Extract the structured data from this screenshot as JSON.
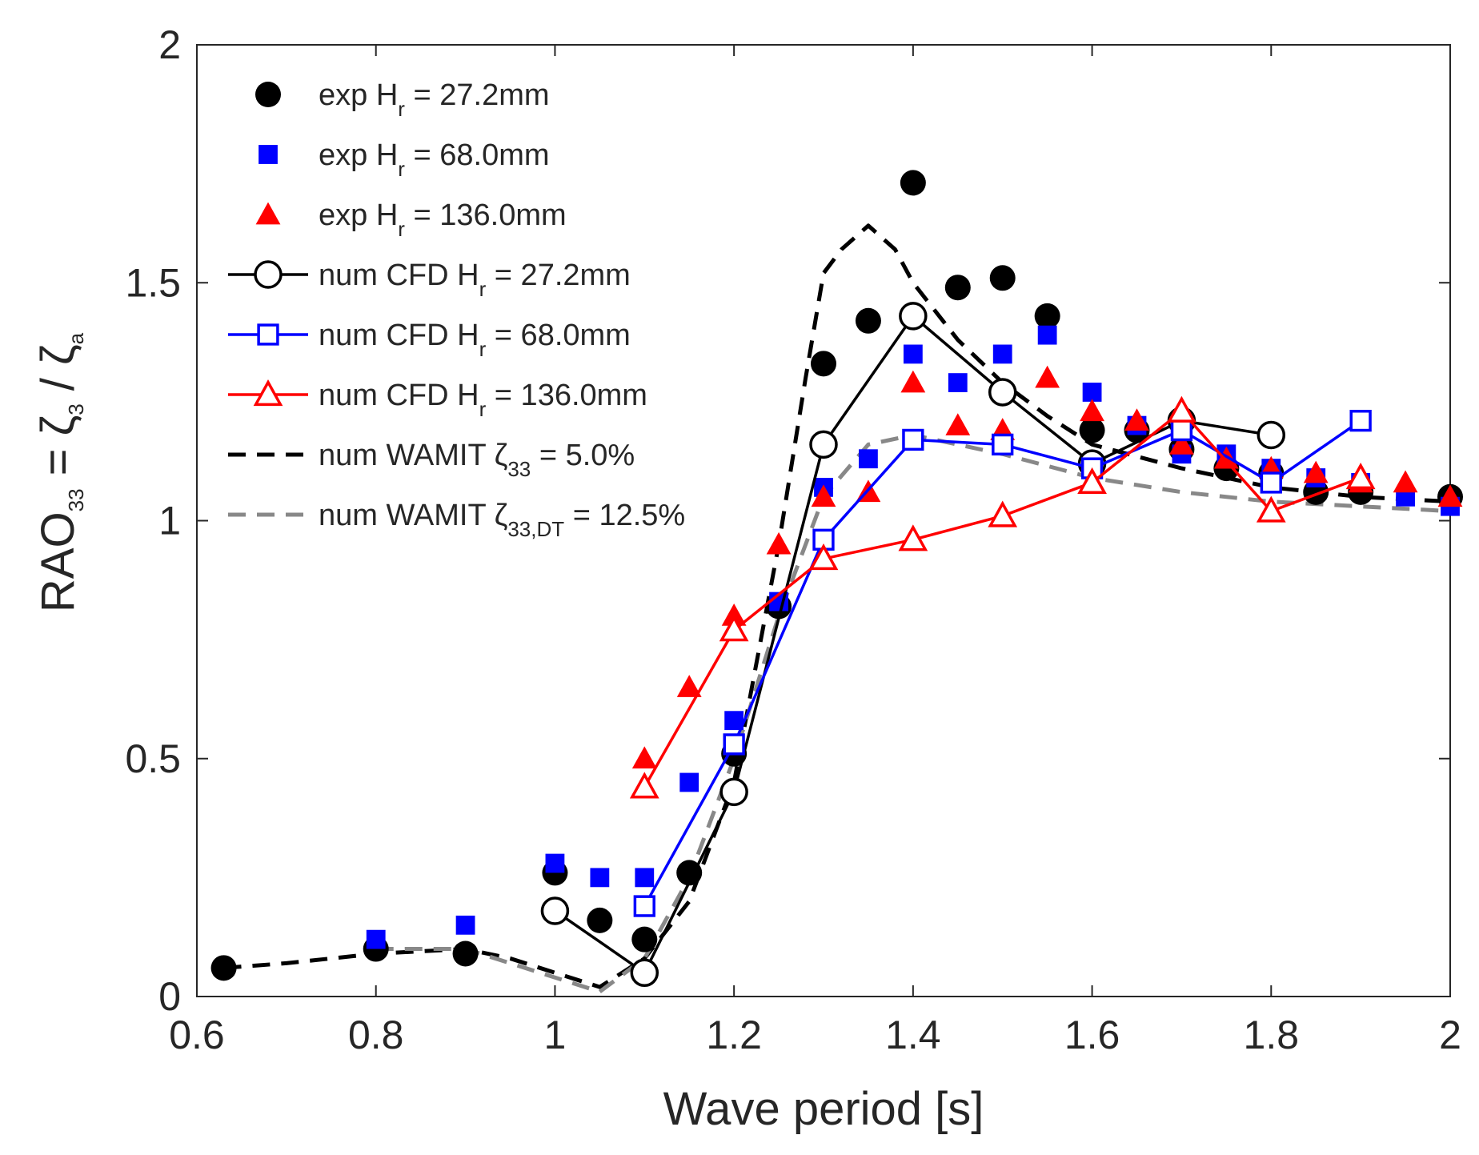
{
  "chart_data": {
    "type": "scatter",
    "xlabel": "Wave period [s]",
    "ylabel": {
      "main": "RAO",
      "sub1": "33",
      "eq": " = ζ",
      "sub2": "3",
      "slash": " / ζ",
      "sub3": "a"
    },
    "xlim": [
      0.6,
      2.0
    ],
    "ylim": [
      0,
      2.0
    ],
    "xticks": [
      0.6,
      0.8,
      1.0,
      1.2,
      1.4,
      1.6,
      1.8,
      2.0
    ],
    "xtick_labels": [
      "0.6",
      "0.8",
      "1",
      "1.2",
      "1.4",
      "1.6",
      "1.8",
      "2"
    ],
    "yticks": [
      0,
      0.5,
      1.0,
      1.5,
      2.0
    ],
    "ytick_labels": [
      "0",
      "0.5",
      "1",
      "1.5",
      "2"
    ],
    "legend_position": "top-left",
    "series": [
      {
        "name": "exp Hr = 27.2mm",
        "label": {
          "pre": "exp H",
          "sub": "r",
          "post": " = 27.2mm"
        },
        "kind": "marker",
        "marker": "circle-filled",
        "color": "#000000",
        "x": [
          0.63,
          0.8,
          0.9,
          1.0,
          1.05,
          1.1,
          1.15,
          1.2,
          1.25,
          1.3,
          1.35,
          1.4,
          1.45,
          1.5,
          1.55,
          1.6,
          1.65,
          1.7,
          1.75,
          1.8,
          1.85,
          1.9,
          2.0
        ],
        "y": [
          0.06,
          0.1,
          0.09,
          0.26,
          0.16,
          0.12,
          0.26,
          0.51,
          0.82,
          1.33,
          1.42,
          1.71,
          1.49,
          1.51,
          1.43,
          1.19,
          1.19,
          1.15,
          1.11,
          1.1,
          1.06,
          1.06,
          1.05
        ]
      },
      {
        "name": "exp Hr = 68.0mm",
        "label": {
          "pre": "exp H",
          "sub": "r",
          "post": " = 68.0mm"
        },
        "kind": "marker",
        "marker": "square-filled",
        "color": "#0000ff",
        "x": [
          0.8,
          0.9,
          1.0,
          1.05,
          1.1,
          1.15,
          1.2,
          1.25,
          1.3,
          1.35,
          1.4,
          1.45,
          1.5,
          1.55,
          1.6,
          1.65,
          1.7,
          1.75,
          1.8,
          1.85,
          1.9,
          1.95,
          2.0
        ],
        "y": [
          0.12,
          0.15,
          0.28,
          0.25,
          0.25,
          0.45,
          0.58,
          0.83,
          1.07,
          1.13,
          1.35,
          1.29,
          1.35,
          1.39,
          1.27,
          1.2,
          1.14,
          1.14,
          1.11,
          1.09,
          1.08,
          1.05,
          1.03
        ]
      },
      {
        "name": "exp Hr = 136.0mm",
        "label": {
          "pre": "exp H",
          "sub": "r",
          "post": " = 136.0mm"
        },
        "kind": "marker",
        "marker": "triangle-filled",
        "color": "#ff0000",
        "x": [
          1.1,
          1.15,
          1.2,
          1.25,
          1.3,
          1.35,
          1.4,
          1.45,
          1.5,
          1.55,
          1.6,
          1.65,
          1.7,
          1.75,
          1.8,
          1.85,
          1.9,
          1.95,
          2.0
        ],
        "y": [
          0.5,
          0.65,
          0.8,
          0.95,
          1.05,
          1.06,
          1.29,
          1.2,
          1.19,
          1.3,
          1.23,
          1.21,
          1.16,
          1.13,
          1.11,
          1.1,
          1.08,
          1.08,
          1.05
        ]
      },
      {
        "name": "num CFD Hr = 27.2mm",
        "label": {
          "pre": "num CFD H",
          "sub": "r",
          "post": " = 27.2mm"
        },
        "kind": "line-marker",
        "marker": "circle-open",
        "color": "#000000",
        "x": [
          1.0,
          1.1,
          1.2,
          1.3,
          1.4,
          1.5,
          1.6,
          1.7,
          1.8
        ],
        "y": [
          0.18,
          0.05,
          0.43,
          1.16,
          1.43,
          1.27,
          1.12,
          1.21,
          1.18
        ]
      },
      {
        "name": "num CFD Hr = 68.0mm",
        "label": {
          "pre": "num CFD H",
          "sub": "r",
          "post": " = 68.0mm"
        },
        "kind": "line-marker",
        "marker": "square-open",
        "color": "#0000ff",
        "x": [
          1.1,
          1.2,
          1.3,
          1.4,
          1.5,
          1.6,
          1.7,
          1.8,
          1.9
        ],
        "y": [
          0.19,
          0.53,
          0.96,
          1.17,
          1.16,
          1.11,
          1.19,
          1.08,
          1.21
        ]
      },
      {
        "name": "num CFD Hr = 136.0mm",
        "label": {
          "pre": "num CFD H",
          "sub": "r",
          "post": " = 136.0mm"
        },
        "kind": "line-marker",
        "marker": "triangle-open",
        "color": "#ff0000",
        "x": [
          1.1,
          1.2,
          1.3,
          1.4,
          1.5,
          1.6,
          1.7,
          1.8,
          1.9
        ],
        "y": [
          0.44,
          0.77,
          0.92,
          0.96,
          1.01,
          1.08,
          1.23,
          1.02,
          1.09
        ]
      },
      {
        "name": "num WAMIT ζ33 = 5.0%",
        "label": {
          "pre": "num WAMIT ζ",
          "sub": "33",
          "post": " = 5.0%"
        },
        "kind": "dashed-line",
        "color": "#000000",
        "x": [
          0.63,
          0.7,
          0.8,
          0.9,
          0.95,
          1.0,
          1.05,
          1.1,
          1.15,
          1.2,
          1.25,
          1.28,
          1.3,
          1.32,
          1.35,
          1.38,
          1.4,
          1.45,
          1.5,
          1.55,
          1.6,
          1.7,
          1.8,
          1.9,
          2.0
        ],
        "y": [
          0.06,
          0.07,
          0.09,
          0.1,
          0.08,
          0.05,
          0.02,
          0.08,
          0.2,
          0.45,
          0.95,
          1.3,
          1.52,
          1.57,
          1.62,
          1.57,
          1.5,
          1.38,
          1.29,
          1.22,
          1.16,
          1.11,
          1.07,
          1.05,
          1.04
        ]
      },
      {
        "name": "num WAMIT ζ33,DT = 12.5%",
        "label": {
          "pre": "num WAMIT ζ",
          "sub": "33,DT",
          "post": " = 12.5%"
        },
        "kind": "dashed-line",
        "color": "#888888",
        "x": [
          0.8,
          0.9,
          0.95,
          1.0,
          1.05,
          1.1,
          1.15,
          1.2,
          1.25,
          1.3,
          1.35,
          1.4,
          1.45,
          1.5,
          1.6,
          1.7,
          1.8,
          1.9,
          2.0
        ],
        "y": [
          0.1,
          0.1,
          0.07,
          0.04,
          0.01,
          0.08,
          0.25,
          0.5,
          0.8,
          1.05,
          1.16,
          1.18,
          1.16,
          1.14,
          1.09,
          1.06,
          1.04,
          1.03,
          1.02
        ]
      }
    ]
  }
}
